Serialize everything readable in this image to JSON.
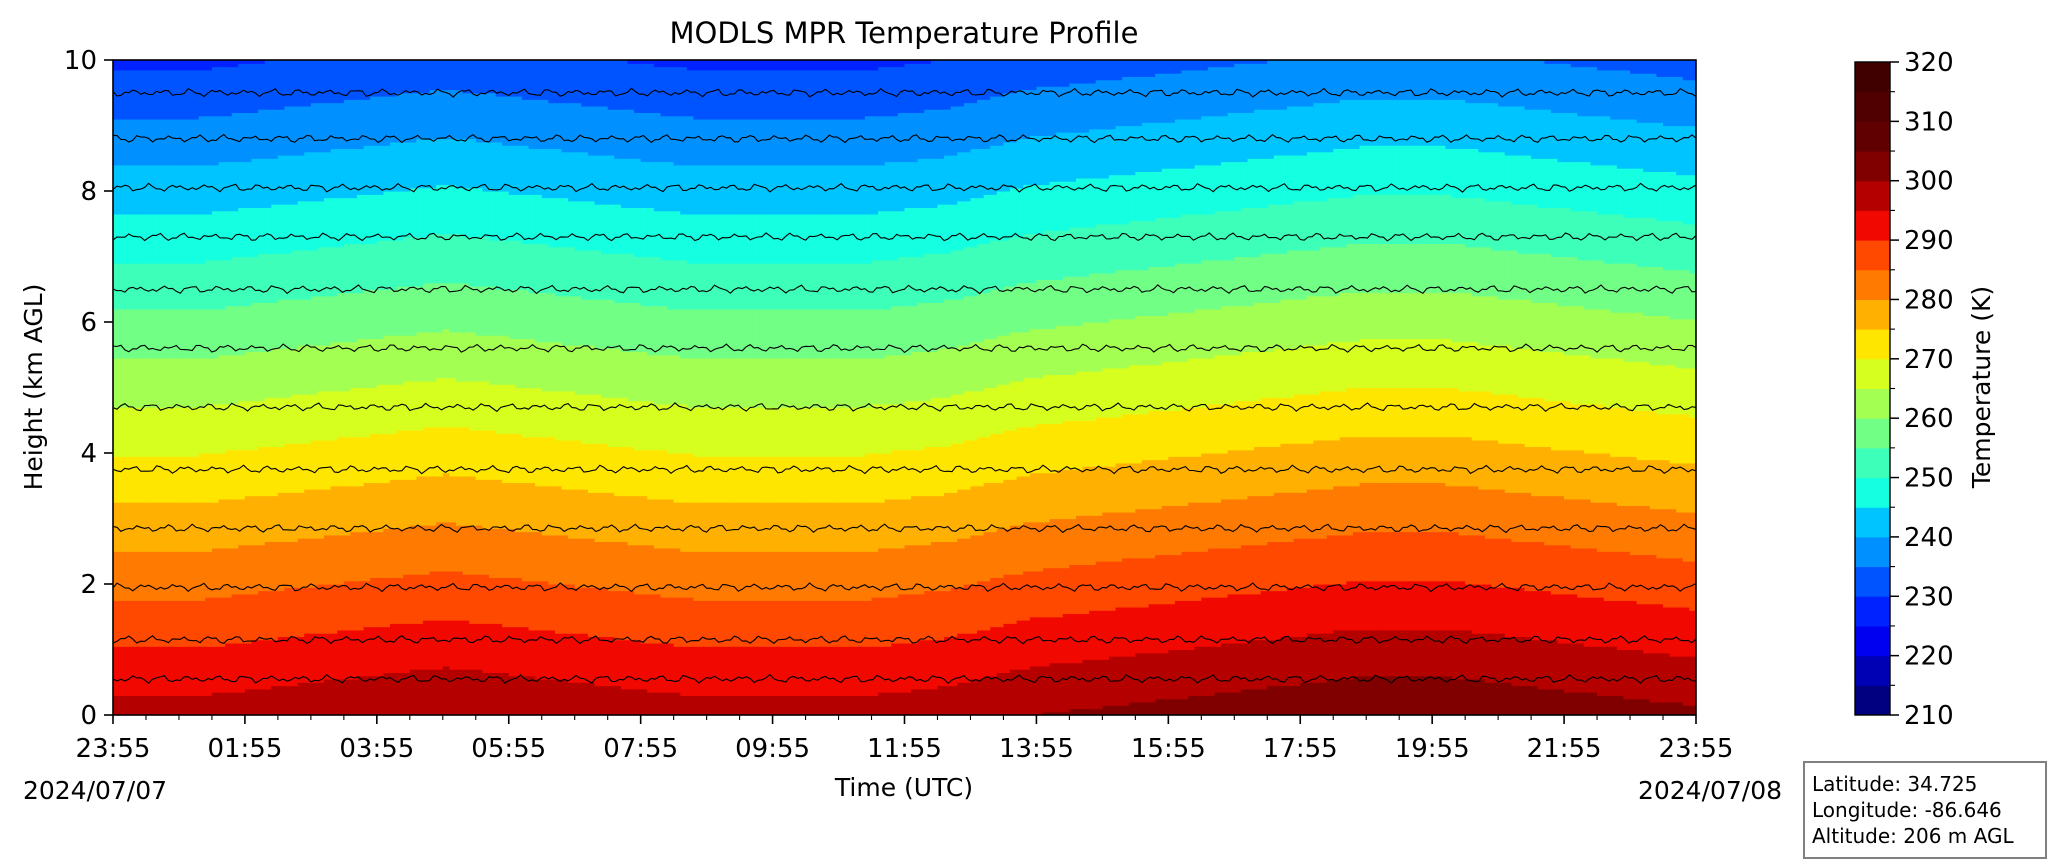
{
  "chart_data": {
    "type": "heatmap",
    "title": "MODLS MPR Temperature Profile",
    "xlabel": "Time (UTC)",
    "ylabel": "Height (km AGL)",
    "x_ticks": [
      "23:55",
      "01:55",
      "03:55",
      "05:55",
      "07:55",
      "09:55",
      "11:55",
      "13:55",
      "15:55",
      "17:55",
      "19:55",
      "21:55",
      "23:55"
    ],
    "start_date": "2024/07/07",
    "end_date": "2024/07/08",
    "ylim": [
      0,
      10
    ],
    "y_ticks": [
      0,
      2,
      4,
      6,
      8,
      10
    ],
    "colorbar": {
      "label": "Temperature (K)",
      "range": [
        210,
        320
      ],
      "step": 5,
      "ticks": [
        210,
        220,
        230,
        240,
        250,
        260,
        270,
        280,
        290,
        300,
        310,
        320
      ],
      "colors": [
        "#000080",
        "#0000b5",
        "#0000f1",
        "#0022ff",
        "#0054ff",
        "#0090ff",
        "#00c4ff",
        "#15ffe1",
        "#3dffba",
        "#71ff86",
        "#a4ff53",
        "#d6ff1f",
        "#ffe600",
        "#ffb000",
        "#ff7a00",
        "#ff4800",
        "#f10800",
        "#b50000",
        "#800000",
        "#600000",
        "#500000",
        "#400000"
      ]
    },
    "contour_heights_km": [
      0.55,
      1.15,
      1.95,
      2.85,
      3.75,
      4.7,
      5.6,
      6.5,
      7.3,
      8.05,
      8.8,
      9.5
    ],
    "surface_temperature_K": [
      297,
      297,
      298,
      299,
      300,
      299,
      298,
      297,
      297,
      297,
      298,
      300,
      301,
      302,
      303,
      304,
      304,
      303,
      302,
      301
    ],
    "lapse_rate_K_per_km": 6.8,
    "grid": false,
    "legend": "none"
  },
  "info_box": {
    "latitude": "Latitude: 34.725",
    "longitude": "Longitude: -86.646",
    "altitude": "Altitude: 206 m AGL"
  }
}
